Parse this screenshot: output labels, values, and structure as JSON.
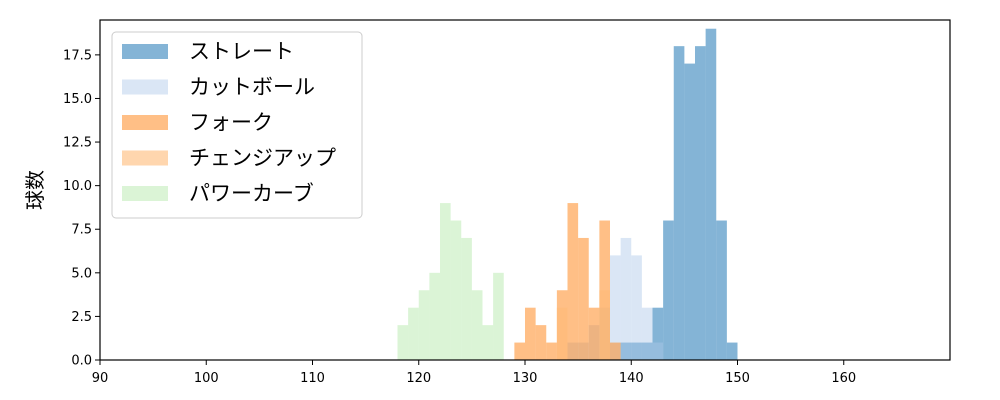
{
  "chart_data": {
    "type": "bar",
    "subtype": "histogram",
    "title": "",
    "xlabel": "",
    "ylabel": "球数",
    "xlim": [
      90,
      170
    ],
    "ylim": [
      0,
      19.5
    ],
    "xticks": [
      "90",
      "100",
      "110",
      "120",
      "130",
      "140",
      "150",
      "160"
    ],
    "xtick_values": [
      90,
      100,
      110,
      120,
      130,
      140,
      150,
      160
    ],
    "yticks": [
      "0.0",
      "2.5",
      "5.0",
      "7.5",
      "10.0",
      "12.5",
      "15.0",
      "17.5"
    ],
    "ytick_values": [
      0,
      2.5,
      5,
      7.5,
      10,
      12.5,
      15,
      17.5
    ],
    "grid": false,
    "legend_position": "top-left",
    "series": [
      {
        "name": "ストレート",
        "color": "#1f77b4",
        "alpha": 0.55,
        "bin_start": 139,
        "bin_width": 1,
        "counts": [
          1,
          1,
          1,
          3,
          8,
          18,
          17,
          18,
          19,
          8,
          1
        ]
      },
      {
        "name": "カットボール",
        "color": "#aec7e8",
        "alpha": 0.45,
        "bin_start": 134,
        "bin_width": 1,
        "counts": [
          1,
          1,
          2,
          3,
          6,
          7,
          6,
          3,
          1
        ]
      },
      {
        "name": "フォーク",
        "color": "#ff7f0e",
        "alpha": 0.5,
        "bin_start": 129,
        "bin_width": 1,
        "counts": [
          1,
          3,
          2,
          1,
          4,
          9,
          7,
          3,
          8,
          1
        ]
      },
      {
        "name": "チェンジアップ",
        "color": "#ffbb78",
        "alpha": 0.6,
        "bin_start": 133,
        "bin_width": 1,
        "counts": [
          3,
          0,
          0,
          0,
          4
        ]
      },
      {
        "name": "パワーカーブ",
        "color": "#98df8a",
        "alpha": 0.35,
        "bin_start": 118,
        "bin_width": 1,
        "counts": [
          2,
          3,
          4,
          5,
          9,
          8,
          7,
          4,
          2,
          5
        ]
      }
    ]
  }
}
